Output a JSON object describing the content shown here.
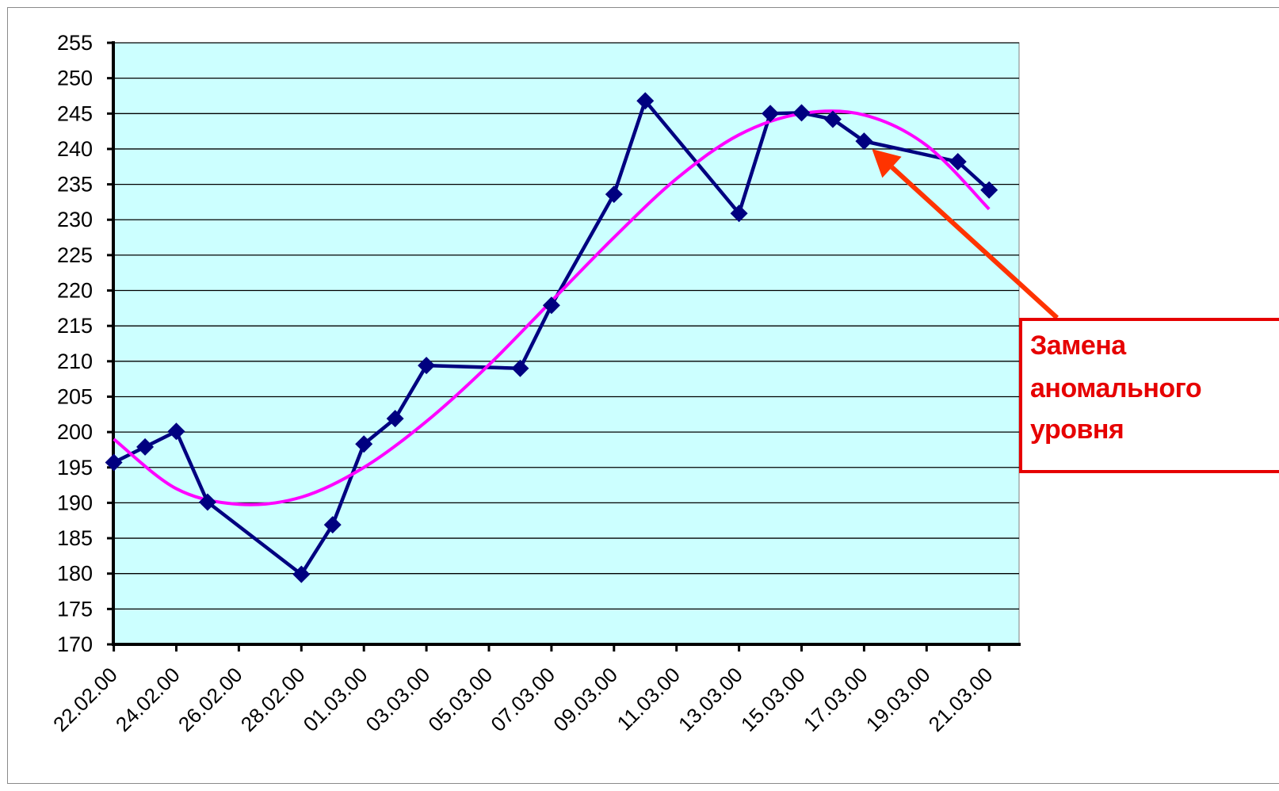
{
  "chart_data": {
    "type": "line",
    "title": "",
    "xlabel": "",
    "ylabel": "",
    "ylim": [
      170,
      255
    ],
    "ytick_step": 5,
    "grid": true,
    "plot_background": "#ccffff",
    "x_tick_labels": [
      "22.02.00",
      "24.02.00",
      "26.02.00",
      "28.02.00",
      "01.03.00",
      "03.03.00",
      "05.03.00",
      "07.03.00",
      "09.03.00",
      "11.03.00",
      "13.03.00",
      "15.03.00",
      "17.03.00",
      "19.03.00",
      "21.03.00"
    ],
    "series": [
      {
        "color": "#000080",
        "marker": "diamond",
        "x": [
          "22.02.00",
          "23.02.00",
          "24.02.00",
          "25.02.00",
          "28.02.00",
          "29.02.00",
          "01.03.00",
          "02.03.00",
          "03.03.00",
          "06.03.00",
          "07.03.00",
          "09.03.00",
          "10.03.00",
          "13.03.00",
          "14.03.00",
          "15.03.00",
          "16.03.00",
          "17.03.00",
          "20.03.00",
          "21.03.00"
        ],
        "y": [
          195.7,
          197.9,
          200.1,
          190.1,
          179.9,
          186.9,
          198.3,
          201.9,
          209.4,
          209.0,
          217.9,
          233.6,
          246.8,
          230.9,
          245.0,
          245.1,
          244.2,
          241.1,
          238.2,
          234.2
        ]
      },
      {
        "color": "#ff00ff",
        "type": "trend",
        "x": [
          "22.02.00",
          "24.02.00",
          "26.02.00",
          "28.02.00",
          "01.03.00",
          "03.03.00",
          "05.03.00",
          "07.03.00",
          "09.03.00",
          "11.03.00",
          "13.03.00",
          "15.03.00",
          "17.03.00",
          "19.03.00",
          "21.03.00"
        ],
        "y": [
          199.0,
          192.0,
          189.8,
          190.8,
          195.0,
          201.5,
          209.5,
          218.5,
          227.5,
          235.8,
          242.0,
          245.0,
          244.8,
          240.5,
          231.5
        ]
      }
    ],
    "annotation": {
      "lines": [
        "Замена",
        "аномального",
        "уровня"
      ],
      "color": "#e60000",
      "points_to": {
        "x": "17.03.00",
        "y": 241.1
      }
    }
  }
}
